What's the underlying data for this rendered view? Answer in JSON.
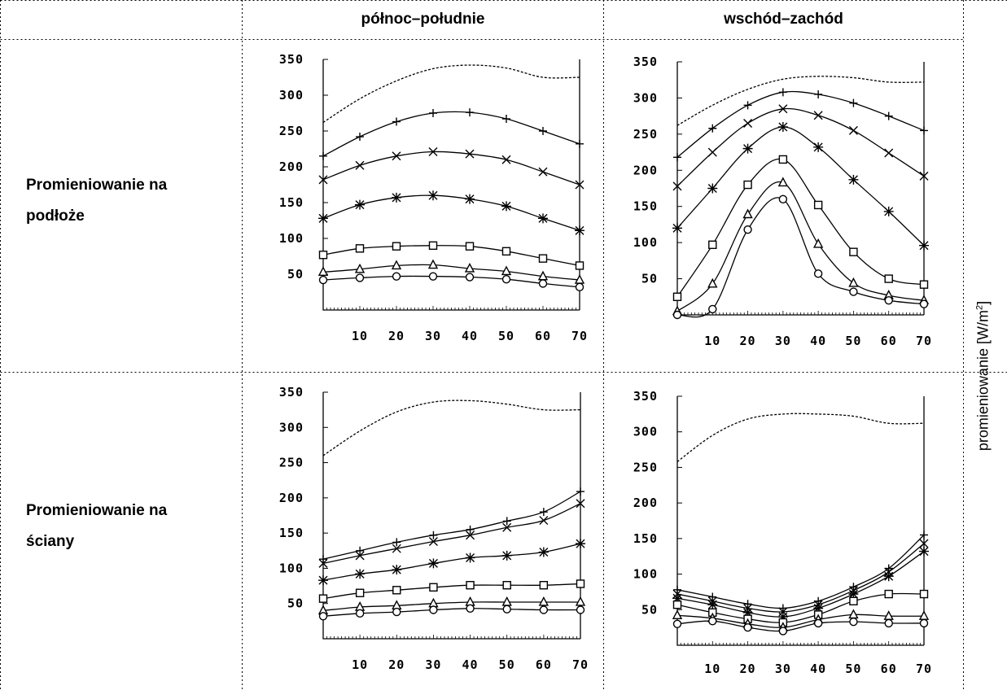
{
  "header": {
    "col1": "północ–południe",
    "col2": "wschód–zachód"
  },
  "rows": {
    "row1_line1": "Promieniowanie na",
    "row1_line2": "podłoże",
    "row2_line1": "Promieniowanie na",
    "row2_line2": "ściany"
  },
  "axis_unit": {
    "text": "promieniowanie [W/m",
    "superscript": "2",
    "close": "]"
  },
  "chart_data": [
    {
      "type": "line",
      "title": "",
      "xlabel": "",
      "ylabel": "",
      "x": [
        0,
        10,
        20,
        30,
        40,
        50,
        60,
        70
      ],
      "xlim": [
        0,
        70
      ],
      "ylim": [
        0,
        350
      ],
      "xticks": [
        "10",
        "20",
        "30",
        "40",
        "50",
        "60",
        "70"
      ],
      "yticks": [
        "50",
        "100",
        "150",
        "200",
        "250",
        "300",
        "350"
      ],
      "grid": false,
      "series": [
        {
          "marker": "dashed",
          "values": [
            262,
            295,
            320,
            337,
            342,
            338,
            325,
            325
          ]
        },
        {
          "marker": "plus",
          "values": [
            215,
            242,
            263,
            275,
            276,
            267,
            250,
            232
          ]
        },
        {
          "marker": "x",
          "values": [
            182,
            202,
            215,
            221,
            218,
            210,
            193,
            175
          ]
        },
        {
          "marker": "star",
          "values": [
            128,
            147,
            157,
            160,
            155,
            145,
            128,
            111
          ]
        },
        {
          "marker": "square",
          "values": [
            77,
            86,
            89,
            90,
            89,
            82,
            72,
            62
          ]
        },
        {
          "marker": "triangle",
          "values": [
            53,
            57,
            62,
            63,
            58,
            54,
            47,
            42
          ]
        },
        {
          "marker": "circle",
          "values": [
            42,
            45,
            47,
            47,
            46,
            43,
            37,
            32
          ]
        }
      ]
    },
    {
      "type": "line",
      "title": "",
      "xlabel": "",
      "ylabel": "",
      "x": [
        0,
        10,
        20,
        30,
        40,
        50,
        60,
        70
      ],
      "xlim": [
        0,
        70
      ],
      "ylim": [
        0,
        350
      ],
      "xticks": [
        "10",
        "20",
        "30",
        "40",
        "50",
        "60",
        "70"
      ],
      "yticks": [
        "50",
        "100",
        "150",
        "200",
        "250",
        "300",
        "350"
      ],
      "grid": false,
      "series": [
        {
          "marker": "dashed",
          "values": [
            262,
            290,
            312,
            326,
            330,
            328,
            322,
            322
          ]
        },
        {
          "marker": "plus",
          "values": [
            218,
            258,
            290,
            308,
            305,
            293,
            275,
            255
          ]
        },
        {
          "marker": "x",
          "values": [
            178,
            225,
            265,
            285,
            276,
            255,
            224,
            192
          ]
        },
        {
          "marker": "star",
          "values": [
            120,
            175,
            230,
            260,
            232,
            187,
            143,
            96
          ]
        },
        {
          "marker": "square",
          "values": [
            25,
            97,
            180,
            215,
            152,
            87,
            50,
            42
          ]
        },
        {
          "marker": "triangle",
          "values": [
            5,
            43,
            139,
            183,
            98,
            44,
            27,
            20
          ]
        },
        {
          "marker": "circle",
          "values": [
            0,
            8,
            118,
            160,
            57,
            32,
            20,
            15
          ]
        }
      ]
    },
    {
      "type": "line",
      "title": "",
      "xlabel": "",
      "ylabel": "",
      "x": [
        0,
        10,
        20,
        30,
        40,
        50,
        60,
        70
      ],
      "xlim": [
        0,
        70
      ],
      "ylim": [
        0,
        350
      ],
      "xticks": [
        "10",
        "20",
        "30",
        "40",
        "50",
        "60",
        "70"
      ],
      "yticks": [
        "50",
        "100",
        "150",
        "200",
        "250",
        "300",
        "350"
      ],
      "grid": false,
      "series": [
        {
          "marker": "dashed",
          "values": [
            260,
            295,
            322,
            336,
            338,
            333,
            325,
            325
          ]
        },
        {
          "marker": "plus",
          "values": [
            113,
            125,
            137,
            147,
            155,
            167,
            180,
            209
          ]
        },
        {
          "marker": "x",
          "values": [
            107,
            118,
            128,
            138,
            147,
            158,
            168,
            192
          ]
        },
        {
          "marker": "star",
          "values": [
            83,
            92,
            98,
            107,
            115,
            118,
            123,
            135
          ]
        },
        {
          "marker": "square",
          "values": [
            57,
            65,
            69,
            73,
            76,
            76,
            76,
            78
          ]
        },
        {
          "marker": "triangle",
          "values": [
            40,
            45,
            47,
            50,
            52,
            52,
            52,
            52
          ]
        },
        {
          "marker": "circle",
          "values": [
            32,
            36,
            38,
            41,
            43,
            42,
            41,
            41
          ]
        }
      ]
    },
    {
      "type": "line",
      "title": "",
      "xlabel": "",
      "ylabel": "",
      "x": [
        0,
        10,
        20,
        30,
        40,
        50,
        60,
        70
      ],
      "xlim": [
        0,
        70
      ],
      "ylim": [
        0,
        350
      ],
      "xticks": [
        "10",
        "20",
        "30",
        "40",
        "50",
        "60",
        "70"
      ],
      "yticks": [
        "50",
        "100",
        "150",
        "200",
        "250",
        "300",
        "350"
      ],
      "grid": false,
      "series": [
        {
          "marker": "dashed",
          "values": [
            258,
            295,
            318,
            325,
            325,
            322,
            312,
            312
          ]
        },
        {
          "marker": "plus",
          "values": [
            78,
            68,
            58,
            52,
            62,
            82,
            108,
            155
          ]
        },
        {
          "marker": "x",
          "values": [
            72,
            62,
            52,
            47,
            57,
            77,
            103,
            143
          ]
        },
        {
          "marker": "star",
          "values": [
            66,
            57,
            46,
            40,
            52,
            72,
            97,
            132
          ]
        },
        {
          "marker": "square",
          "values": [
            57,
            46,
            37,
            32,
            43,
            62,
            72,
            72
          ]
        },
        {
          "marker": "triangle",
          "values": [
            42,
            38,
            30,
            25,
            36,
            43,
            41,
            41
          ]
        },
        {
          "marker": "circle",
          "values": [
            30,
            34,
            25,
            20,
            31,
            33,
            31,
            31
          ]
        }
      ]
    }
  ]
}
